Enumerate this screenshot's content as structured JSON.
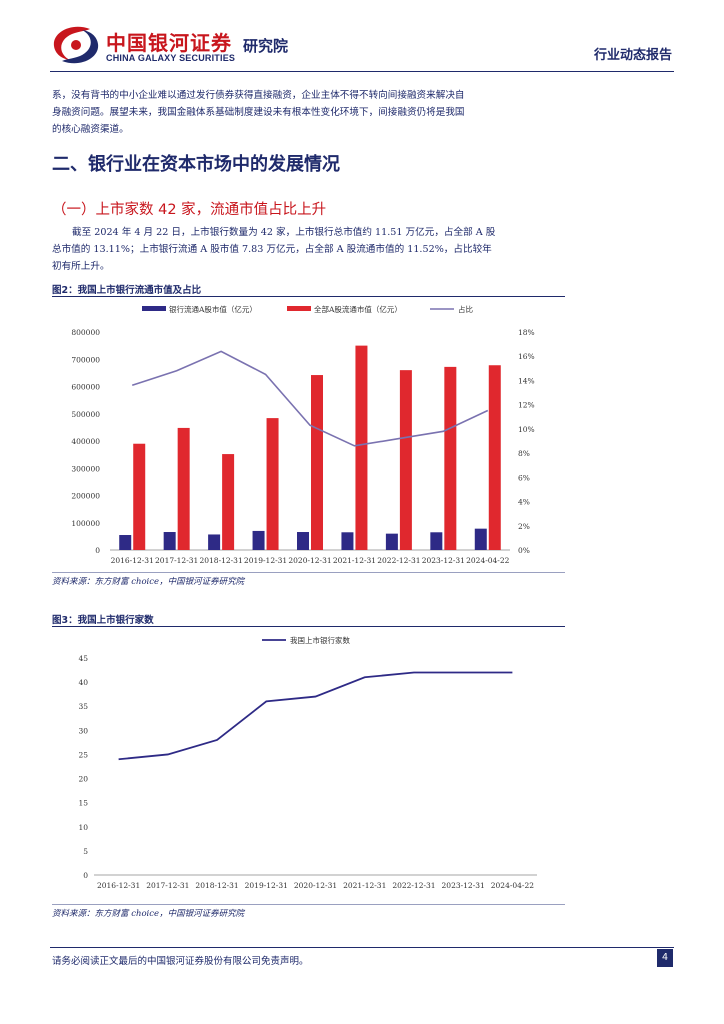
{
  "header": {
    "logo_cn": "中国银河证券",
    "logo_en": "CHINA GALAXY SECURITIES",
    "dept": "研究院",
    "report_type": "行业动态报告"
  },
  "body": {
    "intro_line1": "系，没有背书的中小企业难以通过发行债券获得直接融资，企业主体不得不转向间接融资来解决自",
    "intro_line2": "身融资问题。展望未来，我国金融体系基础制度建设未有根本性变化环境下，间接融资仍将是我国",
    "intro_line3": "的核心融资渠道。",
    "section_title": "二、银行业在资本市场中的发展情况",
    "subsection_title": "（一）上市家数 42 家，流通市值占比上升",
    "para_line1": "截至 2024 年 4 月 22 日，上市银行数量为 42 家，上市银行总市值约 11.51 万亿元，占全部 A 股",
    "para_line2": "总市值的 13.11%；上市银行流通 A 股市值 7.83 万亿元，占全部 A 股流通市值的 11.52%，占比较年",
    "para_line3": "初有所上升。"
  },
  "figure2": {
    "title": "图2：我国上市银行流通市值及占比",
    "source": "资料来源：东方财富 choice，中国银河证券研究院"
  },
  "figure3": {
    "title": "图3：我国上市银行家数",
    "source": "资料来源：东方财富 choice，中国银河证券研究院"
  },
  "footer": {
    "disclaimer": "请务必阅读正文最后的中国银河证券股份有限公司免责声明。",
    "page": "4"
  },
  "colors": {
    "navy": "#1f2a6b",
    "bar_dark": "#2e2a86",
    "bar_red": "#e0282e",
    "ratio_line": "#7a72b0"
  },
  "chart_data": [
    {
      "type": "bar",
      "categories": [
        "2016-12-31",
        "2017-12-31",
        "2018-12-31",
        "2019-12-31",
        "2020-12-31",
        "2021-12-31",
        "2022-12-31",
        "2023-12-31",
        "2024-04-22"
      ],
      "series": [
        {
          "name": "银行流通A股市值（亿元）",
          "type": "bar",
          "axis": "left",
          "values": [
            55000,
            66000,
            57000,
            70000,
            66000,
            65000,
            60000,
            65000,
            78300
          ]
        },
        {
          "name": "全部A股流通市值（亿元）",
          "type": "bar",
          "axis": "left",
          "values": [
            390000,
            448000,
            352000,
            484000,
            642000,
            750000,
            660000,
            672000,
            678000
          ]
        },
        {
          "name": "占比",
          "type": "line",
          "axis": "right",
          "values": [
            13.6,
            14.8,
            16.4,
            14.5,
            10.3,
            8.6,
            9.2,
            9.8,
            11.52
          ]
        }
      ],
      "ylim": [
        0,
        800000
      ],
      "yticks": [
        "0",
        "100000",
        "200000",
        "300000",
        "400000",
        "500000",
        "600000",
        "700000",
        "800000"
      ],
      "y2lim": [
        0,
        18
      ],
      "y2ticks": [
        "0%",
        "2%",
        "4%",
        "6%",
        "8%",
        "10%",
        "12%",
        "14%",
        "16%",
        "18%"
      ],
      "legend": "top",
      "grid": false
    },
    {
      "type": "line",
      "categories": [
        "2016-12-31",
        "2017-12-31",
        "2018-12-31",
        "2019-12-31",
        "2020-12-31",
        "2021-12-31",
        "2022-12-31",
        "2023-12-31",
        "2024-04-22"
      ],
      "series": [
        {
          "name": "我国上市银行家数",
          "values": [
            24,
            25,
            28,
            36,
            37,
            41,
            42,
            42,
            42
          ]
        }
      ],
      "ylim": [
        0,
        45
      ],
      "yticks": [
        "0",
        "5",
        "10",
        "15",
        "20",
        "25",
        "30",
        "35",
        "40",
        "45"
      ],
      "legend": "top",
      "grid": false
    }
  ]
}
